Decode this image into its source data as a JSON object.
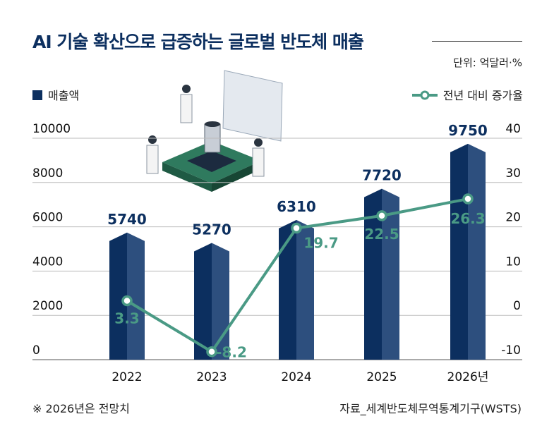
{
  "title": "AI 기술 확산으로 급증하는 글로벌 반도체 매출",
  "unit": "단위: 억달러·%",
  "footnote": "※ 2026년은 전망치",
  "source": "자료_세계반도체무역통계기구(WSTS)",
  "colors": {
    "bar_dark": "#0c2f5f",
    "bar_light": "#2d4f7e",
    "line": "#4a9a85"
  },
  "chart_data": {
    "type": "bar+line",
    "categories": [
      "2022",
      "2023",
      "2024",
      "2025",
      "2026년"
    ],
    "series": [
      {
        "name": "매출액",
        "type": "bar",
        "axis": "left",
        "values": [
          5740,
          5270,
          6310,
          7720,
          9750
        ],
        "labels": [
          "5740",
          "5270",
          "6310",
          "7720",
          "9750"
        ]
      },
      {
        "name": "전년 대비 증가율",
        "type": "line",
        "axis": "right",
        "values": [
          3.3,
          -8.2,
          19.7,
          22.5,
          26.3
        ],
        "labels": [
          "3.3",
          "-8.2",
          "19.7",
          "22.5",
          "26.3"
        ]
      }
    ],
    "left_axis": {
      "range": [
        0,
        10000
      ],
      "ticks": [
        "0",
        "2000",
        "4000",
        "6000",
        "8000",
        "10000"
      ]
    },
    "right_axis": {
      "range": [
        -10,
        40
      ],
      "ticks": [
        "-10",
        "0",
        "10",
        "20",
        "30",
        "40"
      ]
    },
    "legend": "top",
    "grid": true
  }
}
